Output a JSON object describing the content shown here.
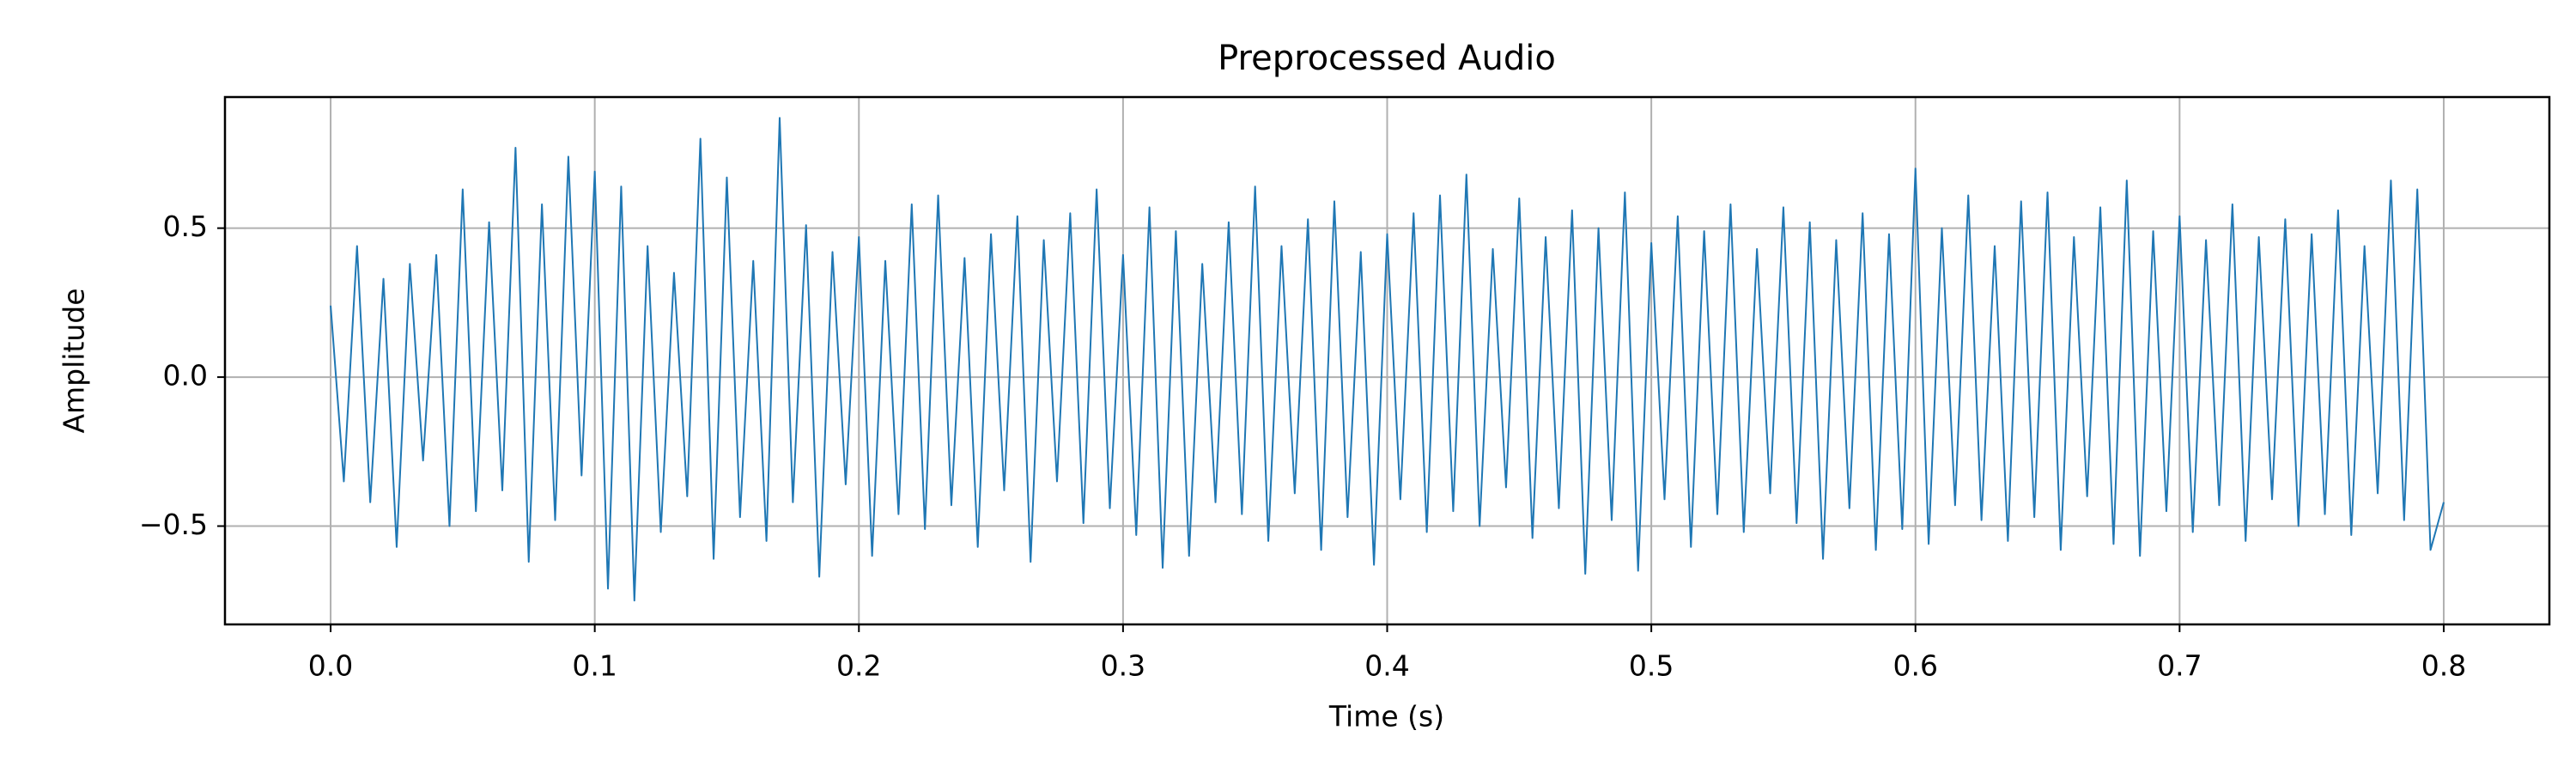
{
  "chart_data": {
    "type": "line",
    "title": "Preprocessed Audio",
    "x_label": "Time (s)",
    "y_label": "Amplitude",
    "color": "#1f77b4",
    "grid": true,
    "xlim": [
      -0.04,
      0.84
    ],
    "ylim": [
      -0.83,
      0.94
    ],
    "xticks": [
      {
        "value": 0,
        "label": "0.0"
      },
      0.1,
      0.2,
      0.3,
      0.4,
      0.5,
      0.6,
      0.7,
      0.8
    ],
    "yticks": [
      {
        "value": -0.5,
        "label": "−0.5"
      },
      {
        "value": 0,
        "label": "0.0"
      },
      0.5
    ],
    "x": [
      0,
      0.005,
      0.01,
      0.015,
      0.02,
      0.025,
      0.03,
      0.035,
      0.04,
      0.045,
      0.05,
      0.055,
      0.06,
      0.065,
      0.07,
      0.075,
      0.08,
      0.085,
      0.09,
      0.095,
      0.1,
      0.105,
      0.11,
      0.115,
      0.12,
      0.125,
      0.13,
      0.135,
      0.14,
      0.145,
      0.15,
      0.155,
      0.16,
      0.165,
      0.17,
      0.175,
      0.18,
      0.185,
      0.19,
      0.195,
      0.2,
      0.205,
      0.21,
      0.215,
      0.22,
      0.225,
      0.23,
      0.235,
      0.24,
      0.245,
      0.25,
      0.255,
      0.26,
      0.265,
      0.27,
      0.275,
      0.28,
      0.285,
      0.29,
      0.295,
      0.3,
      0.305,
      0.31,
      0.315,
      0.32,
      0.325,
      0.33,
      0.335,
      0.34,
      0.345,
      0.35,
      0.355,
      0.36,
      0.365,
      0.37,
      0.375,
      0.38,
      0.385,
      0.39,
      0.395,
      0.4,
      0.405,
      0.41,
      0.415,
      0.42,
      0.425,
      0.43,
      0.435,
      0.44,
      0.445,
      0.45,
      0.455,
      0.46,
      0.465,
      0.47,
      0.475,
      0.48,
      0.485,
      0.49,
      0.495,
      0.5,
      0.505,
      0.51,
      0.515,
      0.52,
      0.525,
      0.53,
      0.535,
      0.54,
      0.545,
      0.55,
      0.555,
      0.56,
      0.565,
      0.57,
      0.575,
      0.58,
      0.585,
      0.59,
      0.595,
      0.6,
      0.605,
      0.61,
      0.615,
      0.62,
      0.625,
      0.63,
      0.635,
      0.64,
      0.645,
      0.65,
      0.655,
      0.66,
      0.665,
      0.67,
      0.675,
      0.68,
      0.685,
      0.69,
      0.695,
      0.7,
      0.705,
      0.71,
      0.715,
      0.72,
      0.725,
      0.73,
      0.735,
      0.74,
      0.745,
      0.75,
      0.755,
      0.76,
      0.765,
      0.77,
      0.775,
      0.78,
      0.785,
      0.79,
      0.795,
      0.8
    ],
    "values": [
      0.24,
      -0.35,
      0.44,
      -0.42,
      0.33,
      -0.57,
      0.38,
      -0.28,
      0.41,
      -0.5,
      0.63,
      -0.45,
      0.52,
      -0.38,
      0.77,
      -0.62,
      0.58,
      -0.48,
      0.74,
      -0.33,
      0.69,
      -0.71,
      0.64,
      -0.75,
      0.44,
      -0.52,
      0.35,
      -0.4,
      0.8,
      -0.61,
      0.67,
      -0.47,
      0.39,
      -0.55,
      0.87,
      -0.42,
      0.51,
      -0.67,
      0.42,
      -0.36,
      0.47,
      -0.6,
      0.39,
      -0.46,
      0.58,
      -0.51,
      0.61,
      -0.43,
      0.4,
      -0.57,
      0.48,
      -0.38,
      0.54,
      -0.62,
      0.46,
      -0.35,
      0.55,
      -0.49,
      0.63,
      -0.44,
      0.41,
      -0.53,
      0.57,
      -0.64,
      0.49,
      -0.6,
      0.38,
      -0.42,
      0.52,
      -0.46,
      0.64,
      -0.55,
      0.44,
      -0.39,
      0.53,
      -0.58,
      0.59,
      -0.47,
      0.42,
      -0.63,
      0.48,
      -0.41,
      0.55,
      -0.52,
      0.61,
      -0.45,
      0.68,
      -0.5,
      0.43,
      -0.37,
      0.6,
      -0.54,
      0.47,
      -0.44,
      0.56,
      -0.66,
      0.5,
      -0.48,
      0.62,
      -0.65,
      0.45,
      -0.41,
      0.54,
      -0.57,
      0.49,
      -0.46,
      0.58,
      -0.52,
      0.43,
      -0.39,
      0.57,
      -0.49,
      0.52,
      -0.61,
      0.46,
      -0.44,
      0.55,
      -0.58,
      0.48,
      -0.51,
      0.7,
      -0.56,
      0.5,
      -0.43,
      0.61,
      -0.48,
      0.44,
      -0.55,
      0.59,
      -0.47,
      0.62,
      -0.58,
      0.47,
      -0.4,
      0.57,
      -0.56,
      0.66,
      -0.6,
      0.49,
      -0.45,
      0.54,
      -0.52,
      0.46,
      -0.43,
      0.58,
      -0.55,
      0.47,
      -0.41,
      0.53,
      -0.5,
      0.48,
      -0.46,
      0.56,
      -0.53,
      0.44,
      -0.39,
      0.66,
      -0.48,
      0.63,
      -0.58,
      -0.42
    ]
  }
}
